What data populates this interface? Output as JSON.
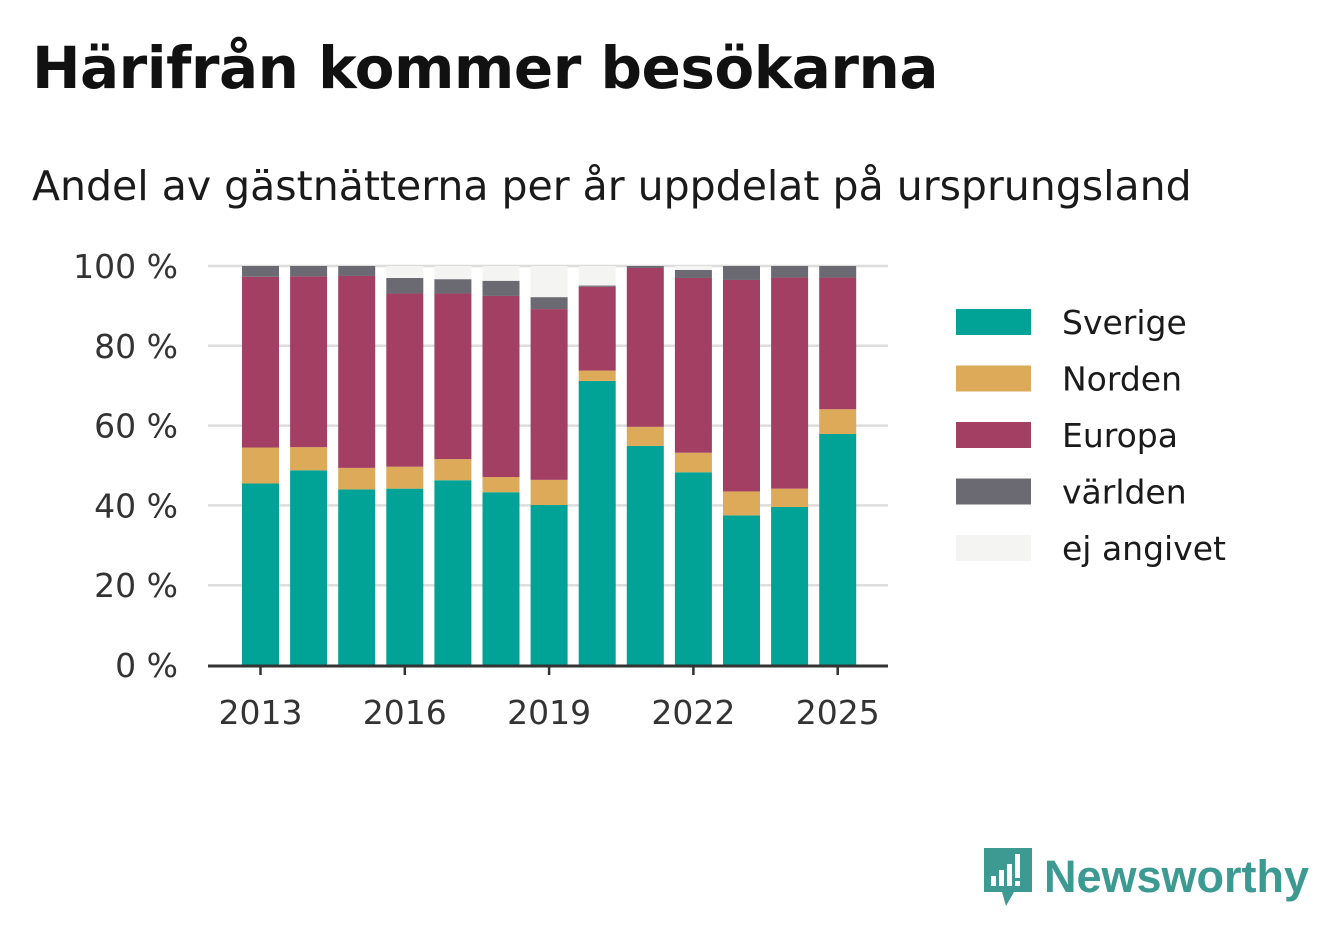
{
  "title": "Härifrån kommer besökarna",
  "subtitle": "Andel av gästnätterna per år uppdelat på ursprungsland",
  "brand": {
    "name": "Newsworthy",
    "icon": "newsworthy-logo-icon",
    "color": "#3d9a93"
  },
  "chart_data": {
    "type": "bar",
    "stacked": true,
    "x": [
      2013,
      2014,
      2015,
      2016,
      2017,
      2018,
      2019,
      2020,
      2021,
      2022,
      2023,
      2024,
      2025
    ],
    "xticks": [
      "2013",
      "2016",
      "2019",
      "2022",
      "2025"
    ],
    "yticks": [
      "0 %",
      "20 %",
      "40 %",
      "60 %",
      "80 %",
      "100 %"
    ],
    "ylim": [
      0,
      100
    ],
    "grid": true,
    "legend_position": "right",
    "series": [
      {
        "name": "Sverige",
        "color": "#00a396",
        "values": [
          45.5,
          48.8,
          44.0,
          44.2,
          46.3,
          43.3,
          40.1,
          71.2,
          54.9,
          48.3,
          37.5,
          39.6,
          57.9
        ]
      },
      {
        "name": "Norden",
        "color": "#dcaa58",
        "values": [
          9.0,
          5.8,
          5.4,
          5.5,
          5.3,
          3.8,
          6.3,
          2.6,
          4.8,
          4.9,
          6.0,
          4.6,
          6.2
        ]
      },
      {
        "name": "Europa",
        "color": "#a43f64",
        "values": [
          42.8,
          42.8,
          48.1,
          43.4,
          41.5,
          45.4,
          42.8,
          21.0,
          39.8,
          43.8,
          53.0,
          52.9,
          33.0
        ]
      },
      {
        "name": "världen",
        "color": "#6b6a72",
        "values": [
          2.7,
          2.6,
          2.5,
          3.9,
          3.6,
          3.8,
          3.0,
          0.3,
          0.5,
          2.0,
          3.5,
          2.9,
          2.9
        ]
      },
      {
        "name": "ej angivet",
        "color": "#f4f4f3",
        "values": [
          0.0,
          0.0,
          0.0,
          3.0,
          3.3,
          3.7,
          7.8,
          4.9,
          0.0,
          1.0,
          0.0,
          0.0,
          0.0
        ]
      }
    ]
  }
}
